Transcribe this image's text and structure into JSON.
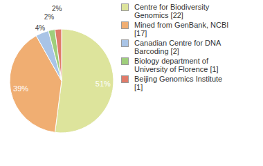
{
  "chart_data": {
    "type": "pie",
    "categories": [
      "Centre for Biodiversity Genomics [22]",
      "Mined from GenBank, NCBI [17]",
      "Canadian Centre for DNA Barcoding [2]",
      "Biology department of University of Florence [1]",
      "Beijing Genomics Institute [1]"
    ],
    "values": [
      51,
      39,
      4,
      2,
      2
    ],
    "value_labels": [
      "51%",
      "39%",
      "4%",
      "2%",
      "2%"
    ],
    "colors": [
      "#dde49c",
      "#f0ae72",
      "#a9c4e6",
      "#9fce7c",
      "#e07b6a"
    ],
    "data_labels": true,
    "legend": "right"
  }
}
